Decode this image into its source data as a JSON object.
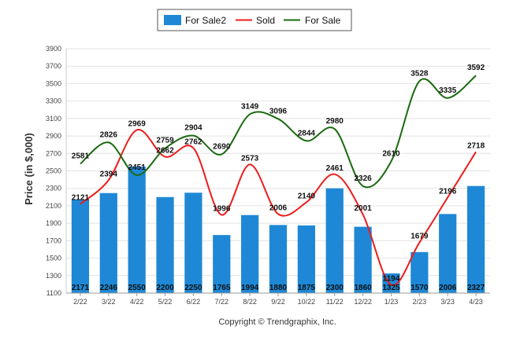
{
  "chart_data": {
    "type": "bar",
    "categories": [
      "2/22",
      "3/22",
      "4/22",
      "5/22",
      "6/22",
      "7/22",
      "8/22",
      "9/22",
      "10/22",
      "11/22",
      "12/22",
      "1/23",
      "2/23",
      "3/23",
      "4/23"
    ],
    "series": [
      {
        "name": "For Sale2",
        "type": "bar",
        "color": "#1e88d6",
        "values": [
          2171,
          2246,
          2550,
          2200,
          2250,
          1765,
          1994,
          1880,
          1875,
          2300,
          1860,
          1325,
          1570,
          2006,
          2327
        ]
      },
      {
        "name": "Sold",
        "type": "line",
        "color": "#ee1c1c",
        "values": [
          2121,
          2394,
          2969,
          2662,
          2762,
          1996,
          2573,
          2006,
          2140,
          2461,
          2001,
          1194,
          1679,
          2196,
          2718
        ]
      },
      {
        "name": "For Sale",
        "type": "line",
        "color": "#1a6a10",
        "values": [
          2581,
          2826,
          2451,
          2759,
          2904,
          2690,
          3149,
          3096,
          2844,
          2980,
          2326,
          2610,
          3528,
          3335,
          3592
        ]
      }
    ],
    "ylabel": "Price (in $,000)",
    "ylim": [
      1100,
      3900
    ],
    "yticks": [
      1100,
      1300,
      1500,
      1700,
      1900,
      2100,
      2300,
      2500,
      2700,
      2900,
      3100,
      3300,
      3500,
      3700,
      3900
    ],
    "grid": true,
    "legend_position": "top-center"
  },
  "footer": {
    "copyright": "Copyright © Trendgraphix, Inc."
  }
}
